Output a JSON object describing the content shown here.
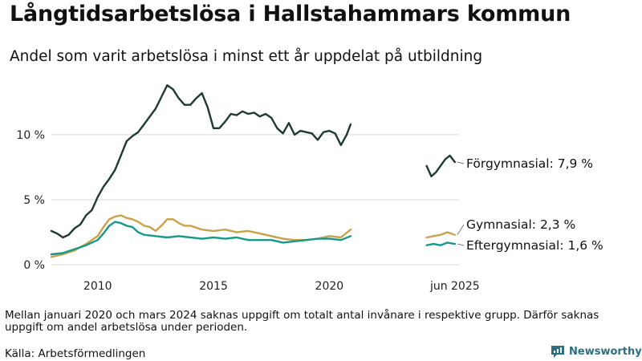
{
  "header": {
    "title": "Långtidsarbetslösa i Hallstahammars kommun",
    "subtitle": "Andel som varit arbetslösa i minst ett år uppdelat på utbildning"
  },
  "footer": {
    "note": "Mellan januari 2020 och mars 2024 saknas uppgift om totalt antal invånare i respektive grupp. Därför saknas uppgift om andel arbetslösa under perioden.",
    "source": "Källa: Arbetsförmedlingen",
    "brand": "Newsworthy"
  },
  "colors": {
    "forgymnasial": "#1d3b33",
    "gymnasial": "#c9a24a",
    "eftergymnasial": "#17988a",
    "brand": "#2e6e83"
  },
  "chart_data": {
    "type": "line",
    "title": "Långtidsarbetslösa i Hallstahammars kommun",
    "subtitle": "Andel som varit arbetslösa i minst ett år uppdelat på utbildning",
    "xlabel": "",
    "ylabel": "",
    "xlim": [
      2008,
      2025.6
    ],
    "ylim": [
      0,
      14.5
    ],
    "grid": true,
    "legend": "direct labels at line ends",
    "x_ticks": [
      {
        "value": 2010,
        "label": "2010"
      },
      {
        "value": 2015,
        "label": "2015"
      },
      {
        "value": 2020,
        "label": "2020"
      },
      {
        "value": 2025.42,
        "label": "jun 2025"
      }
    ],
    "y_ticks": [
      {
        "value": 0,
        "label": "0 %"
      },
      {
        "value": 5,
        "label": "5 %"
      },
      {
        "value": 10,
        "label": "10 %"
      }
    ],
    "series": [
      {
        "key": "forgymnasial",
        "name": "Förgymnasial",
        "end_label": "Förgymnasial: 7,9 %",
        "segments": [
          {
            "x": [
              2008.0,
              2008.25,
              2008.5,
              2008.75,
              2009.0,
              2009.25,
              2009.5,
              2009.75,
              2010.0,
              2010.25,
              2010.5,
              2010.75,
              2011.0,
              2011.25,
              2011.5,
              2011.75,
              2012.0,
              2012.25,
              2012.5,
              2012.75,
              2013.0,
              2013.25,
              2013.5,
              2013.75,
              2014.0,
              2014.25,
              2014.5,
              2014.75,
              2015.0,
              2015.25,
              2015.5,
              2015.75,
              2016.0,
              2016.25,
              2016.5,
              2016.75,
              2017.0,
              2017.25,
              2017.5,
              2017.75,
              2018.0,
              2018.25,
              2018.5,
              2018.75,
              2019.0,
              2019.25,
              2019.5,
              2019.75,
              2020.0,
              2020.25,
              2020.5,
              2020.75,
              2020.92
            ],
            "y": [
              2.6,
              2.4,
              2.1,
              2.3,
              2.8,
              3.1,
              3.8,
              4.2,
              5.2,
              6.0,
              6.6,
              7.3,
              8.4,
              9.5,
              9.9,
              10.2,
              10.8,
              11.4,
              12.0,
              12.9,
              13.8,
              13.5,
              12.8,
              12.3,
              12.3,
              12.8,
              13.2,
              12.1,
              10.5,
              10.5,
              11.0,
              11.6,
              11.5,
              11.8,
              11.6,
              11.7,
              11.4,
              11.6,
              11.3,
              10.5,
              10.1,
              10.9,
              10.0,
              10.3,
              10.2,
              10.1,
              9.6,
              10.2,
              10.3,
              10.1,
              9.2,
              10.0,
              10.8
            ]
          },
          {
            "x": [
              2024.2,
              2024.4,
              2024.6,
              2024.8,
              2025.0,
              2025.2,
              2025.42
            ],
            "y": [
              7.6,
              6.8,
              7.1,
              7.6,
              8.1,
              8.4,
              7.9
            ]
          }
        ]
      },
      {
        "key": "gymnasial",
        "name": "Gymnasial",
        "end_label": "Gymnasial: 2,3 %",
        "segments": [
          {
            "x": [
              2008.0,
              2008.5,
              2009.0,
              2009.5,
              2010.0,
              2010.25,
              2010.5,
              2010.75,
              2011.0,
              2011.25,
              2011.5,
              2011.75,
              2012.0,
              2012.25,
              2012.5,
              2012.75,
              2013.0,
              2013.25,
              2013.5,
              2013.75,
              2014.0,
              2014.5,
              2015.0,
              2015.5,
              2016.0,
              2016.5,
              2017.0,
              2017.5,
              2018.0,
              2018.5,
              2019.0,
              2019.5,
              2020.0,
              2020.5,
              2020.92
            ],
            "y": [
              0.6,
              0.8,
              1.1,
              1.6,
              2.2,
              2.9,
              3.5,
              3.7,
              3.8,
              3.6,
              3.5,
              3.3,
              3.0,
              2.9,
              2.6,
              3.0,
              3.5,
              3.5,
              3.2,
              3.0,
              3.0,
              2.7,
              2.6,
              2.7,
              2.5,
              2.6,
              2.4,
              2.2,
              2.0,
              1.9,
              1.9,
              2.0,
              2.2,
              2.1,
              2.7
            ]
          },
          {
            "x": [
              2024.2,
              2024.5,
              2024.8,
              2025.1,
              2025.42
            ],
            "y": [
              2.1,
              2.2,
              2.3,
              2.5,
              2.3
            ]
          }
        ]
      },
      {
        "key": "eftergymnasial",
        "name": "Eftergymnasial",
        "end_label": "Eftergymnasial: 1,6 %",
        "segments": [
          {
            "x": [
              2008.0,
              2008.5,
              2009.0,
              2009.5,
              2010.0,
              2010.25,
              2010.5,
              2010.75,
              2011.0,
              2011.25,
              2011.5,
              2011.75,
              2012.0,
              2012.5,
              2013.0,
              2013.5,
              2014.0,
              2014.5,
              2015.0,
              2015.5,
              2016.0,
              2016.5,
              2017.0,
              2017.5,
              2018.0,
              2018.5,
              2019.0,
              2019.5,
              2020.0,
              2020.5,
              2020.92
            ],
            "y": [
              0.8,
              0.9,
              1.2,
              1.5,
              1.9,
              2.4,
              3.0,
              3.3,
              3.2,
              3.0,
              2.9,
              2.5,
              2.3,
              2.2,
              2.1,
              2.2,
              2.1,
              2.0,
              2.1,
              2.0,
              2.1,
              1.9,
              1.9,
              1.9,
              1.7,
              1.8,
              1.9,
              2.0,
              2.0,
              1.9,
              2.2
            ]
          },
          {
            "x": [
              2024.2,
              2024.5,
              2024.8,
              2025.1,
              2025.42
            ],
            "y": [
              1.5,
              1.6,
              1.5,
              1.7,
              1.6
            ]
          }
        ]
      }
    ]
  }
}
